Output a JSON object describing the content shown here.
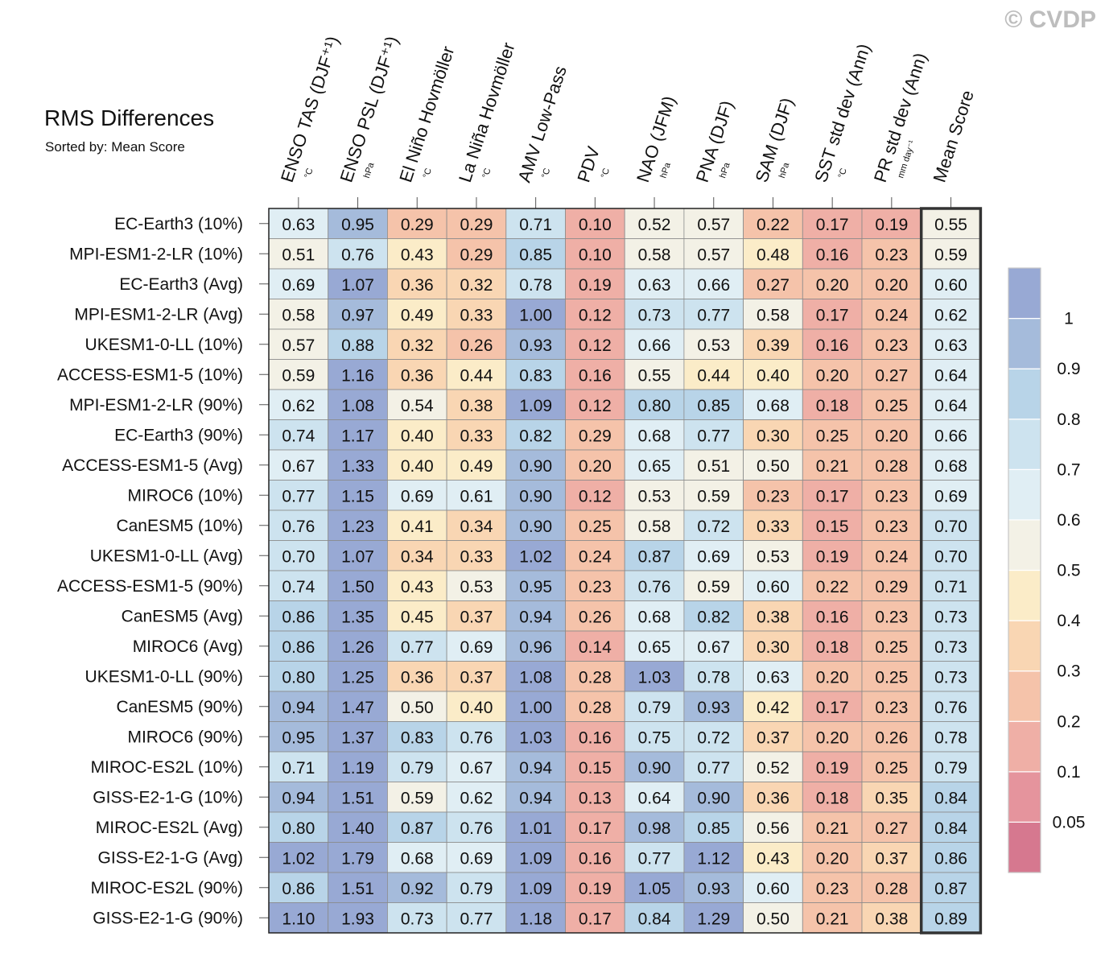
{
  "watermark": "© CVDP",
  "chart_data": {
    "type": "heatmap",
    "title": "RMS Differences",
    "subtitle": "Sorted by: Mean Score",
    "columns": [
      {
        "label": "ENSO TAS (DJF⁺¹)",
        "unit": "°C"
      },
      {
        "label": "ENSO PSL (DJF⁺¹)",
        "unit": "hPa"
      },
      {
        "label": "El Niño Hovmöller",
        "unit": "°C"
      },
      {
        "label": "La Niña Hovmöller",
        "unit": "°C"
      },
      {
        "label": "AMV Low-Pass",
        "unit": "°C"
      },
      {
        "label": "PDV",
        "unit": "°C"
      },
      {
        "label": "NAO (JFM)",
        "unit": "hPa"
      },
      {
        "label": "PNA (DJF)",
        "unit": "hPa"
      },
      {
        "label": "SAM (DJF)",
        "unit": "hPa"
      },
      {
        "label": "SST std dev (Ann)",
        "unit": "°C"
      },
      {
        "label": "PR std dev (Ann)",
        "unit": "mm day⁻¹"
      },
      {
        "label": "Mean Score",
        "unit": ""
      }
    ],
    "rows": [
      "EC-Earth3 (10%)",
      "MPI-ESM1-2-LR (10%)",
      "EC-Earth3 (Avg)",
      "MPI-ESM1-2-LR (Avg)",
      "UKESM1-0-LL (10%)",
      "ACCESS-ESM1-5 (10%)",
      "MPI-ESM1-2-LR (90%)",
      "EC-Earth3 (90%)",
      "ACCESS-ESM1-5 (Avg)",
      "MIROC6 (10%)",
      "CanESM5 (10%)",
      "UKESM1-0-LL (Avg)",
      "ACCESS-ESM1-5 (90%)",
      "CanESM5 (Avg)",
      "MIROC6 (Avg)",
      "UKESM1-0-LL (90%)",
      "CanESM5 (90%)",
      "MIROC6 (90%)",
      "MIROC-ES2L (10%)",
      "GISS-E2-1-G (10%)",
      "MIROC-ES2L (Avg)",
      "GISS-E2-1-G (Avg)",
      "MIROC-ES2L (90%)",
      "GISS-E2-1-G (90%)"
    ],
    "values": [
      [
        "0.63",
        "0.95",
        "0.29",
        "0.29",
        "0.71",
        "0.10",
        "0.52",
        "0.57",
        "0.22",
        "0.17",
        "0.19",
        "0.55"
      ],
      [
        "0.51",
        "0.76",
        "0.43",
        "0.29",
        "0.85",
        "0.10",
        "0.58",
        "0.57",
        "0.48",
        "0.16",
        "0.23",
        "0.59"
      ],
      [
        "0.69",
        "1.07",
        "0.36",
        "0.32",
        "0.78",
        "0.19",
        "0.63",
        "0.66",
        "0.27",
        "0.20",
        "0.20",
        "0.60"
      ],
      [
        "0.58",
        "0.97",
        "0.49",
        "0.33",
        "1.00",
        "0.12",
        "0.73",
        "0.77",
        "0.58",
        "0.17",
        "0.24",
        "0.62"
      ],
      [
        "0.57",
        "0.88",
        "0.32",
        "0.26",
        "0.93",
        "0.12",
        "0.66",
        "0.53",
        "0.39",
        "0.16",
        "0.23",
        "0.63"
      ],
      [
        "0.59",
        "1.16",
        "0.36",
        "0.44",
        "0.83",
        "0.16",
        "0.55",
        "0.44",
        "0.40",
        "0.20",
        "0.27",
        "0.64"
      ],
      [
        "0.62",
        "1.08",
        "0.54",
        "0.38",
        "1.09",
        "0.12",
        "0.80",
        "0.85",
        "0.68",
        "0.18",
        "0.25",
        "0.64"
      ],
      [
        "0.74",
        "1.17",
        "0.40",
        "0.33",
        "0.82",
        "0.29",
        "0.68",
        "0.77",
        "0.30",
        "0.25",
        "0.20",
        "0.66"
      ],
      [
        "0.67",
        "1.33",
        "0.40",
        "0.49",
        "0.90",
        "0.20",
        "0.65",
        "0.51",
        "0.50",
        "0.21",
        "0.28",
        "0.68"
      ],
      [
        "0.77",
        "1.15",
        "0.69",
        "0.61",
        "0.90",
        "0.12",
        "0.53",
        "0.59",
        "0.23",
        "0.17",
        "0.23",
        "0.69"
      ],
      [
        "0.76",
        "1.23",
        "0.41",
        "0.34",
        "0.90",
        "0.25",
        "0.58",
        "0.72",
        "0.33",
        "0.15",
        "0.23",
        "0.70"
      ],
      [
        "0.70",
        "1.07",
        "0.34",
        "0.33",
        "1.02",
        "0.24",
        "0.87",
        "0.69",
        "0.53",
        "0.19",
        "0.24",
        "0.70"
      ],
      [
        "0.74",
        "1.50",
        "0.43",
        "0.53",
        "0.95",
        "0.23",
        "0.76",
        "0.59",
        "0.60",
        "0.22",
        "0.29",
        "0.71"
      ],
      [
        "0.86",
        "1.35",
        "0.45",
        "0.37",
        "0.94",
        "0.26",
        "0.68",
        "0.82",
        "0.38",
        "0.16",
        "0.23",
        "0.73"
      ],
      [
        "0.86",
        "1.26",
        "0.77",
        "0.69",
        "0.96",
        "0.14",
        "0.65",
        "0.67",
        "0.30",
        "0.18",
        "0.25",
        "0.73"
      ],
      [
        "0.80",
        "1.25",
        "0.36",
        "0.37",
        "1.08",
        "0.28",
        "1.03",
        "0.78",
        "0.63",
        "0.20",
        "0.25",
        "0.73"
      ],
      [
        "0.94",
        "1.47",
        "0.50",
        "0.40",
        "1.00",
        "0.28",
        "0.79",
        "0.93",
        "0.42",
        "0.17",
        "0.23",
        "0.76"
      ],
      [
        "0.95",
        "1.37",
        "0.83",
        "0.76",
        "1.03",
        "0.16",
        "0.75",
        "0.72",
        "0.37",
        "0.20",
        "0.26",
        "0.78"
      ],
      [
        "0.71",
        "1.19",
        "0.79",
        "0.67",
        "0.94",
        "0.15",
        "0.90",
        "0.77",
        "0.52",
        "0.19",
        "0.25",
        "0.79"
      ],
      [
        "0.94",
        "1.51",
        "0.59",
        "0.62",
        "0.94",
        "0.13",
        "0.64",
        "0.90",
        "0.36",
        "0.18",
        "0.35",
        "0.84"
      ],
      [
        "0.80",
        "1.40",
        "0.87",
        "0.76",
        "1.01",
        "0.17",
        "0.98",
        "0.85",
        "0.56",
        "0.21",
        "0.27",
        "0.84"
      ],
      [
        "1.02",
        "1.79",
        "0.68",
        "0.69",
        "1.09",
        "0.16",
        "0.77",
        "1.12",
        "0.43",
        "0.20",
        "0.37",
        "0.86"
      ],
      [
        "0.86",
        "1.51",
        "0.92",
        "0.79",
        "1.09",
        "0.19",
        "1.05",
        "0.93",
        "0.60",
        "0.23",
        "0.28",
        "0.87"
      ],
      [
        "1.10",
        "1.93",
        "0.73",
        "0.77",
        "1.18",
        "0.17",
        "0.84",
        "1.29",
        "0.50",
        "0.21",
        "0.38",
        "0.89"
      ]
    ],
    "colorbar": {
      "levels": [
        0.05,
        0.1,
        0.2,
        0.3,
        0.4,
        0.5,
        0.6,
        0.7,
        0.8,
        0.9,
        1
      ],
      "tick_labels": [
        "0.05",
        "0.1",
        "0.2",
        "0.3",
        "0.4",
        "0.5",
        "0.6",
        "0.7",
        "0.8",
        "0.9",
        "1"
      ],
      "colors": [
        "#d6788f",
        "#e5949d",
        "#efafa6",
        "#f5c3aa",
        "#f9d6b3",
        "#fbecc8",
        "#f3f1e6",
        "#e0eef4",
        "#cde3ef",
        "#b8d4e8",
        "#a5bbdb",
        "#98a9d4"
      ]
    },
    "highlighted_column": "Mean Score"
  }
}
